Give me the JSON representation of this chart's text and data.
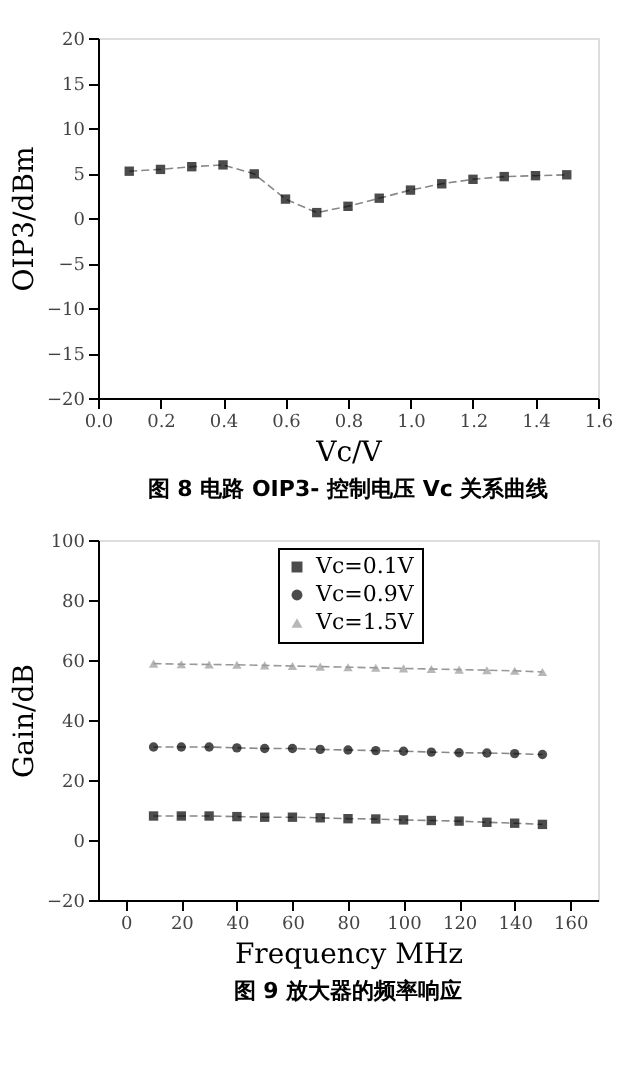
{
  "chart_data": [
    {
      "type": "line",
      "xlabel": "Vc/V",
      "ylabel": "OIP3/dBm",
      "x": [
        0.1,
        0.2,
        0.3,
        0.4,
        0.5,
        0.6,
        0.7,
        0.8,
        0.9,
        1.0,
        1.1,
        1.2,
        1.3,
        1.4,
        1.5
      ],
      "series": [
        {
          "color": "#000000",
          "values": [
            5.2,
            5.4,
            5.7,
            5.9,
            4.9,
            2.1,
            0.6,
            1.3,
            2.2,
            3.1,
            3.8,
            4.3,
            4.6,
            4.7,
            4.8
          ]
        }
      ],
      "xlim": [
        0,
        1.6
      ],
      "xticks": [
        {
          "value": 0,
          "label": "0.0"
        },
        0.2,
        0.4,
        0.6,
        0.8,
        {
          "value": 1,
          "label": "1.0"
        },
        1.2,
        1.4,
        1.6
      ],
      "ylim": [
        -20,
        20
      ],
      "yticks": [
        -20,
        -15,
        -10,
        -5,
        0,
        5,
        10,
        15,
        20
      ],
      "grid": false,
      "marker": "square",
      "line_style": "dashed",
      "annotations": [
        "图 8 电路 OIP3- 控制电压 Vc 关系曲线"
      ]
    },
    {
      "type": "line",
      "xlabel": "Frequency MHz",
      "ylabel": "Gain/dB",
      "x": [
        10,
        20,
        30,
        40,
        50,
        60,
        70,
        80,
        90,
        100,
        110,
        120,
        130,
        140,
        150
      ],
      "series": [
        {
          "name": "Vc=0.1V",
          "color": "#000000",
          "marker": "square",
          "values": [
            8.0,
            8.0,
            8.0,
            7.8,
            7.6,
            7.6,
            7.4,
            7.1,
            7.0,
            6.7,
            6.5,
            6.3,
            5.9,
            5.6,
            5.2
          ]
        },
        {
          "name": "Vc=0.9V",
          "color": "#000000",
          "marker": "circle",
          "values": [
            31.0,
            31.0,
            31.0,
            30.7,
            30.5,
            30.5,
            30.2,
            30.0,
            29.8,
            29.6,
            29.3,
            29.1,
            29.0,
            28.8,
            28.5
          ]
        },
        {
          "name": "Vc=1.5V",
          "color": "#999999",
          "marker": "triangle",
          "values": [
            58.8,
            58.6,
            58.5,
            58.4,
            58.2,
            58.0,
            57.8,
            57.6,
            57.4,
            57.2,
            57.0,
            56.8,
            56.6,
            56.4,
            56.0
          ]
        }
      ],
      "xlim": [
        -10,
        170
      ],
      "xticks": [
        0,
        20,
        40,
        60,
        80,
        100,
        120,
        140,
        160
      ],
      "ylim": [
        -20,
        100
      ],
      "yticks": [
        -20,
        0,
        20,
        40,
        60,
        80,
        100
      ],
      "grid": false,
      "legend": "top",
      "line_style": "dashed",
      "annotations": [
        "图 9 放大器的频率响应"
      ]
    }
  ]
}
